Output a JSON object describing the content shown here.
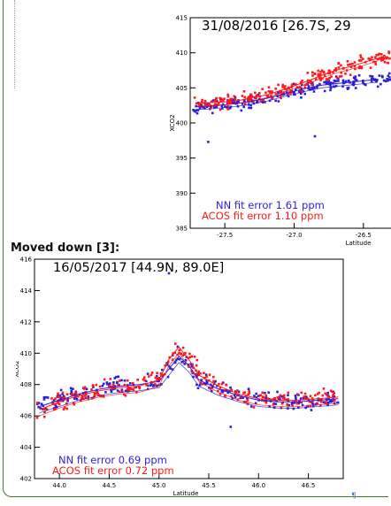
{
  "caption": "Moved down [3]:",
  "pilcrow": "¶",
  "colors": {
    "nn": "#2b1fd6",
    "acos": "#ff1a1a",
    "frame": "#3d7a2e"
  },
  "chart_data": [
    {
      "type": "scatter",
      "title": "31/08/2016   [26.7S, 29",
      "xlabel": "Latitude",
      "ylabel": "XCO2",
      "xlim": [
        -27.75,
        -26.25
      ],
      "ylim": [
        385,
        415
      ],
      "xticks": [
        -27.5,
        -27.0,
        -26.5
      ],
      "xtick_labels": [
        "-27.5",
        "-27.0",
        "-26.5"
      ],
      "yticks": [
        385,
        390,
        395,
        400,
        405,
        410,
        415
      ],
      "ytick_labels": [
        "385",
        "390",
        "395",
        "400",
        "405",
        "410",
        "415"
      ],
      "annotations": [
        "NN fit error 1.61 ppm",
        "ACOS fit error 1.10 ppm"
      ],
      "series": [
        {
          "key": "nn",
          "x": [
            -27.7,
            -27.6,
            -27.5,
            -27.4,
            -27.3,
            -27.2,
            -27.1,
            -27.0,
            -26.9,
            -26.8,
            -26.7,
            -26.6,
            -26.5,
            -26.4
          ],
          "y": [
            402.3,
            402.4,
            402.6,
            402.8,
            403.1,
            403.5,
            404.0,
            404.5,
            405.0,
            405.4,
            405.6,
            405.8,
            406.0,
            406.2
          ]
        },
        {
          "key": "acos",
          "x": [
            -27.7,
            -27.6,
            -27.5,
            -27.4,
            -27.3,
            -27.2,
            -27.1,
            -27.0,
            -26.9,
            -26.8,
            -26.7,
            -26.6,
            -26.5,
            -26.4
          ],
          "y": [
            402.8,
            402.9,
            403.0,
            403.2,
            403.6,
            404.0,
            404.6,
            405.3,
            406.0,
            406.8,
            407.5,
            408.0,
            408.6,
            409.2
          ]
        }
      ],
      "outliers": [
        {
          "x": -27.62,
          "y": 397.3
        },
        {
          "x": -26.85,
          "y": 398.1
        }
      ]
    },
    {
      "type": "scatter",
      "title": "16/05/2017   [44.9N, 89.0E]",
      "xlabel": "Latitude",
      "ylabel": "XCO2",
      "xlim": [
        43.75,
        46.85
      ],
      "ylim": [
        402,
        416
      ],
      "xticks": [
        44.0,
        44.5,
        45.0,
        45.5,
        46.0,
        46.5
      ],
      "xtick_labels": [
        "44.0",
        "44.5",
        "45.0",
        "45.5",
        "46.0",
        "46.5"
      ],
      "yticks": [
        402,
        404,
        406,
        408,
        410,
        412,
        414,
        416
      ],
      "ytick_labels": [
        "402",
        "404",
        "406",
        "408",
        "410",
        "412",
        "414",
        "416"
      ],
      "annotations": [
        "NN fit error 0.69 ppm",
        "ACOS fit error 0.72 ppm"
      ],
      "series": [
        {
          "key": "nn",
          "x": [
            43.8,
            44.0,
            44.2,
            44.4,
            44.6,
            44.8,
            45.0,
            45.1,
            45.2,
            45.3,
            45.4,
            45.6,
            45.8,
            46.0,
            46.2,
            46.4,
            46.6,
            46.8
          ],
          "y": [
            406.6,
            407.0,
            407.4,
            407.7,
            407.9,
            408.0,
            408.2,
            409.0,
            409.8,
            409.2,
            408.3,
            407.7,
            407.3,
            407.0,
            406.9,
            406.9,
            407.0,
            407.1
          ]
        },
        {
          "key": "acos",
          "x": [
            43.8,
            44.0,
            44.2,
            44.4,
            44.6,
            44.8,
            45.0,
            45.1,
            45.2,
            45.3,
            45.4,
            45.6,
            45.8,
            46.0,
            46.2,
            46.4,
            46.6,
            46.8
          ],
          "y": [
            406.4,
            406.9,
            407.3,
            407.6,
            407.8,
            407.9,
            408.3,
            409.6,
            410.4,
            409.6,
            408.6,
            407.9,
            407.4,
            407.1,
            407.0,
            407.0,
            407.1,
            407.2
          ]
        }
      ],
      "outliers": [
        {
          "x": 45.72,
          "y": 405.3
        },
        {
          "x": 45.1,
          "y": 415.1
        }
      ]
    }
  ]
}
